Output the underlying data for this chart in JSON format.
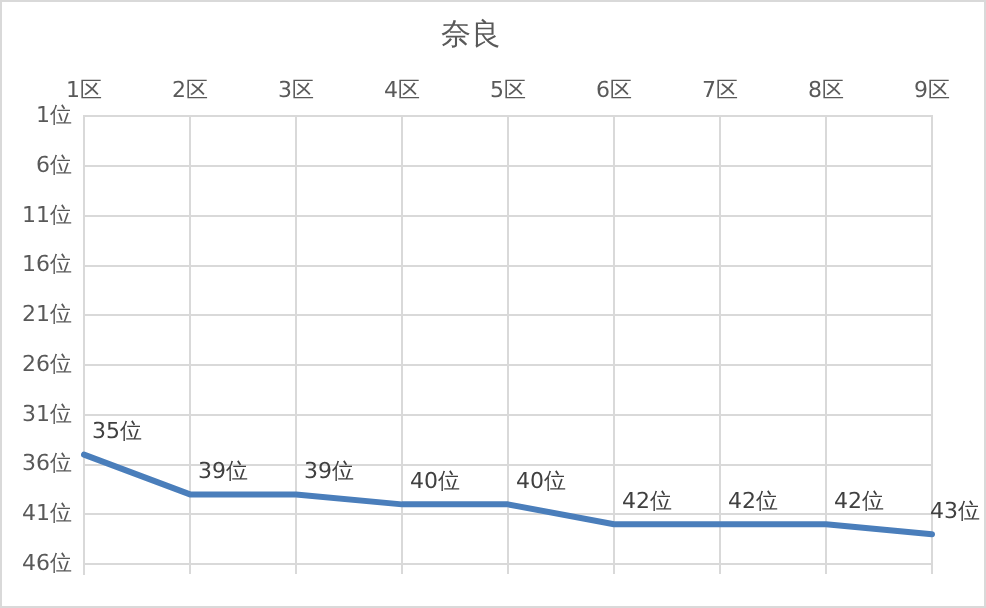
{
  "chart_data": {
    "type": "line",
    "title": "奈良",
    "categories": [
      "1区",
      "2区",
      "3区",
      "4区",
      "5区",
      "6区",
      "7区",
      "8区",
      "9区"
    ],
    "series": [
      {
        "color": "#4a7ebb",
        "values": [
          35,
          39,
          39,
          40,
          40,
          42,
          42,
          42,
          43
        ],
        "value_labels": [
          "35位",
          "39位",
          "39位",
          "40位",
          "40位",
          "42位",
          "42位",
          "42位",
          "43位"
        ]
      }
    ],
    "ylim": [
      47,
      1
    ],
    "yticks": [
      {
        "value": 1,
        "label": "1位"
      },
      {
        "value": 6,
        "label": "6位"
      },
      {
        "value": 11,
        "label": "11位"
      },
      {
        "value": 16,
        "label": "16位"
      },
      {
        "value": 21,
        "label": "21位"
      },
      {
        "value": 26,
        "label": "26位"
      },
      {
        "value": 31,
        "label": "31位"
      },
      {
        "value": 36,
        "label": "36位"
      },
      {
        "value": 41,
        "label": "41位"
      },
      {
        "value": 46,
        "label": "46位"
      }
    ],
    "grid": true,
    "legend": false,
    "marker": "none",
    "line_style": "solid"
  }
}
